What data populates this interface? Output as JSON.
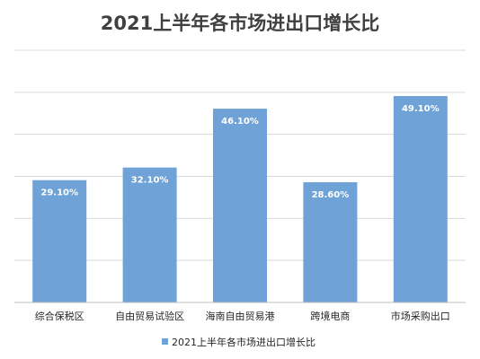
{
  "chart_data": {
    "type": "bar",
    "title": "2021上半年各市场进出口增长比",
    "categories": [
      "综合保税区",
      "自由贸易试验区",
      "海南自由贸易港",
      "跨境电商",
      "市场采购出口"
    ],
    "series": [
      {
        "name": "2021上半年各市场进出口增长比",
        "values": [
          29.1,
          32.1,
          46.1,
          28.6,
          49.1
        ],
        "labels": [
          "29.10%",
          "32.10%",
          "46.10%",
          "28.60%",
          "49.10%"
        ],
        "color": "#6FA2D6"
      }
    ],
    "ylim": [
      0,
      60
    ],
    "grid": true,
    "legend_position": "bottom"
  }
}
